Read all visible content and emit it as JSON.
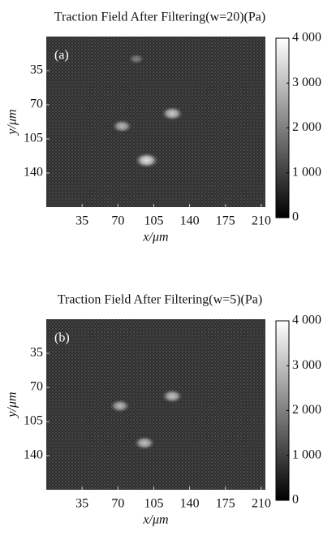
{
  "chart_data": [
    {
      "type": "heatmap",
      "title": "Traction Field After Filtering(w=20)(Pa)",
      "panel_label": "(a)",
      "x_label": "x/μm",
      "y_label": "y/μm",
      "xlim": [
        0,
        214
      ],
      "ylim": [
        175,
        0
      ],
      "xticks": [
        35,
        70,
        105,
        140,
        175,
        210
      ],
      "yticks": [
        35,
        70,
        105,
        140
      ],
      "colorbar_lim": [
        0,
        4000
      ],
      "colorbar_ticks": [
        0,
        {
          "value": 1000,
          "label": "1 000"
        },
        {
          "value": 2000,
          "label": "2 000"
        },
        {
          "value": 3000,
          "label": "3 000"
        },
        {
          "value": 4000,
          "label": "4 000"
        }
      ],
      "colormap": [
        "#000000",
        "#ffffff"
      ],
      "hotspots": {
        "x": [
          74,
          123,
          98,
          88
        ],
        "y": [
          92,
          79,
          127,
          23
        ],
        "values": [
          2600,
          3000,
          3500,
          1500
        ]
      }
    },
    {
      "type": "heatmap",
      "title": "Traction Field After Filtering(w=5)(Pa)",
      "panel_label": "(b)",
      "x_label": "x/μm",
      "y_label": "y/μm",
      "xlim": [
        0,
        214
      ],
      "ylim": [
        175,
        0
      ],
      "xticks": [
        35,
        70,
        105,
        140,
        175,
        210
      ],
      "yticks": [
        35,
        70,
        105,
        140
      ],
      "colorbar_lim": [
        0,
        4000
      ],
      "colorbar_ticks": [
        0,
        {
          "value": 1000,
          "label": "1 000"
        },
        {
          "value": 2000,
          "label": "2 000"
        },
        {
          "value": 3000,
          "label": "3 000"
        },
        {
          "value": 4000,
          "label": "4 000"
        }
      ],
      "colormap": [
        "#000000",
        "#ffffff"
      ],
      "hotspots": {
        "x": [
          72,
          123,
          96
        ],
        "y": [
          89,
          79,
          127
        ],
        "values": [
          2600,
          2800,
          2800
        ]
      }
    }
  ]
}
